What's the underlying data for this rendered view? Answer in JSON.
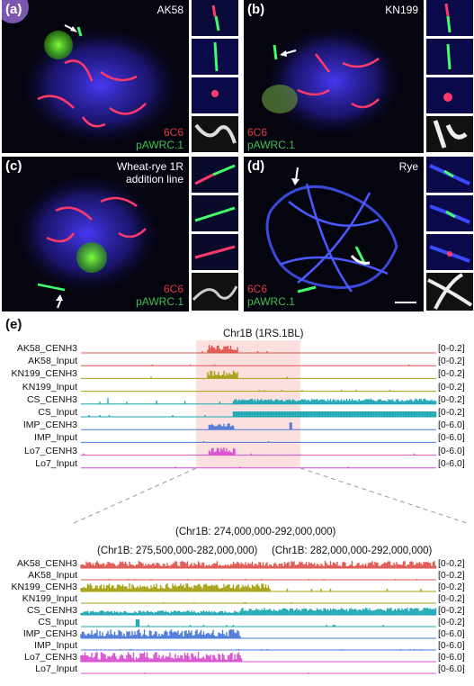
{
  "figure": {
    "panel_a": {
      "label": "(a)",
      "tag": "AK58",
      "legend_red": "6C6",
      "legend_green": "pAWRC.1"
    },
    "panel_b": {
      "label": "(b)",
      "tag": "KN199",
      "legend_red": "6C6",
      "legend_green": "pAWRC.1"
    },
    "panel_c": {
      "label": "(c)",
      "tag_line1": "Wheat-rye 1R",
      "tag_line2": "addition line",
      "legend_red": "6C6",
      "legend_green": "pAWRC.1"
    },
    "panel_d": {
      "label": "(d)",
      "tag": "Rye",
      "legend_red": "6C6",
      "legend_green": "pAWRC.1"
    },
    "panel_e": {
      "label": "(e)",
      "title": "Chr1B (1RS.1BL)",
      "zoom_title": "(Chr1B: 274,000,000-292,000,000)",
      "zoom_sub_left": "(Chr1B: 275,500,000-282,000,000)",
      "zoom_sub_right": "(Chr1B: 282,000,000-292,000,000)",
      "tracks": [
        {
          "name": "AK58_CENH3",
          "range": "[0-0.2]",
          "color": "#e0544e"
        },
        {
          "name": "AK58_Input",
          "range": "[0-0.2]",
          "color": "#e0544e"
        },
        {
          "name": "KN199_CENH3",
          "range": "[0-0.2]",
          "color": "#a5a012"
        },
        {
          "name": "KN199_Input",
          "range": "[0-0.2]",
          "color": "#a5a012"
        },
        {
          "name": "CS_CENH3",
          "range": "[0-0.2]",
          "color": "#1aa6b2"
        },
        {
          "name": "CS_Input",
          "range": "[0-0.2]",
          "color": "#1aa6b2"
        },
        {
          "name": "IMP_CENH3",
          "range": "[0-6.0]",
          "color": "#4a78d8"
        },
        {
          "name": "IMP_Input",
          "range": "[0-6.0]",
          "color": "#4a78d8"
        },
        {
          "name": "Lo7_CENH3",
          "range": "[0-6.0]",
          "color": "#d84fd0"
        },
        {
          "name": "Lo7_Input",
          "range": "[0-6.0]",
          "color": "#d84fd0"
        }
      ]
    }
  }
}
